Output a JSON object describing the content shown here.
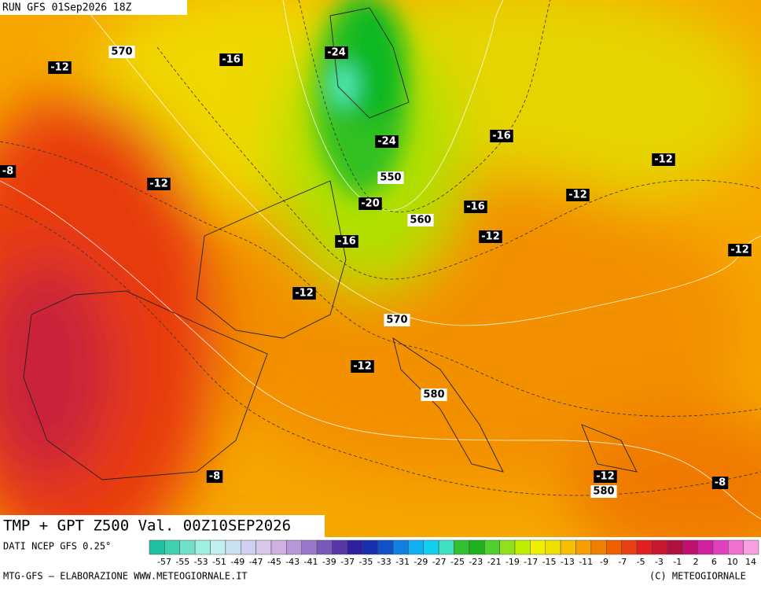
{
  "header": {
    "run": "RUN GFS 01Sep2026 18Z"
  },
  "map": {
    "labels": [
      {
        "kind": "temperature",
        "value": -12
      },
      {
        "kind": "geopotential",
        "value": 570
      },
      {
        "kind": "temperature",
        "value": -16
      },
      {
        "kind": "temperature",
        "value": -24
      },
      {
        "kind": "temperature",
        "value": -24
      },
      {
        "kind": "temperature",
        "value": -16
      },
      {
        "kind": "temperature",
        "value": -8
      },
      {
        "kind": "temperature",
        "value": -12
      },
      {
        "kind": "geopotential",
        "value": 550
      },
      {
        "kind": "temperature",
        "value": -20
      },
      {
        "kind": "temperature",
        "value": -12
      },
      {
        "kind": "temperature",
        "value": -12
      },
      {
        "kind": "temperature",
        "value": -16
      },
      {
        "kind": "geopotential",
        "value": 560
      },
      {
        "kind": "temperature",
        "value": -12
      },
      {
        "kind": "temperature",
        "value": -16
      },
      {
        "kind": "temperature",
        "value": -12
      },
      {
        "kind": "temperature",
        "value": -12
      },
      {
        "kind": "geopotential",
        "value": 570
      },
      {
        "kind": "temperature",
        "value": -12
      },
      {
        "kind": "geopotential",
        "value": 580
      },
      {
        "kind": "temperature",
        "value": -8
      },
      {
        "kind": "temperature",
        "value": -12
      },
      {
        "kind": "geopotential",
        "value": 580
      },
      {
        "kind": "temperature",
        "value": -8
      }
    ]
  },
  "footer": {
    "title": "TMP + GPT Z500 Val. 00Z10SEP2026",
    "source": "DATI NCEP GFS 0.25°",
    "credit": "MTG-GFS — ELABORAZIONE WWW.METEOGIORNALE.IT",
    "copyright": "(C) METEOGIORNALE",
    "scale": [
      -57,
      -55,
      -53,
      -51,
      -49,
      -47,
      -45,
      -43,
      -41,
      -39,
      -37,
      -35,
      -33,
      -31,
      -29,
      -27,
      -25,
      -23,
      -21,
      -19,
      -17,
      -15,
      -13,
      -11,
      -9,
      -7,
      -5,
      -3,
      -1,
      2,
      6,
      10,
      14
    ]
  }
}
